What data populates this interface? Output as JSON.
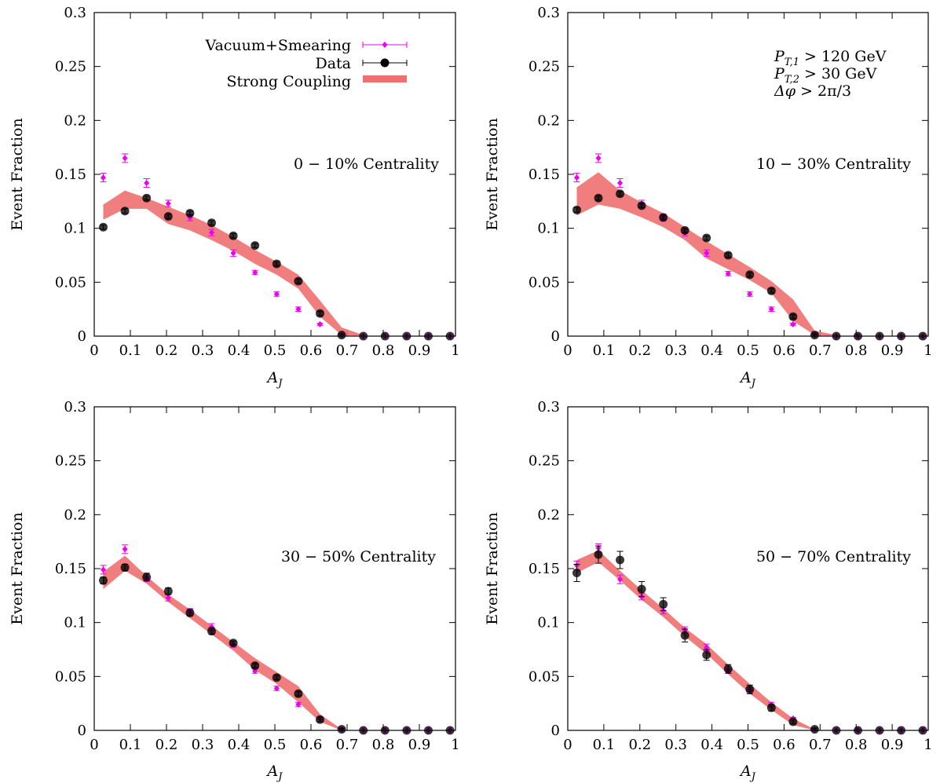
{
  "legend": {
    "entries": [
      {
        "label": "Vacuum+Smearing",
        "color": "#ee00ee"
      },
      {
        "label": "Data",
        "color": "#000000"
      },
      {
        "label": "Strong Coupling",
        "color": "#f07070"
      }
    ]
  },
  "cuts": {
    "line1": {
      "sym": "P",
      "sub": "T,1",
      "rest": " > 120 GeV"
    },
    "line2": {
      "sym": "P",
      "sub": "T,2",
      "rest": " > 30 GeV"
    },
    "line3": {
      "sym": "Δφ",
      "sub": "",
      "rest": " > 2π/3"
    }
  },
  "chart_data": [
    {
      "type": "scatter",
      "centrality": "0 − 10% Centrality",
      "xlabel": {
        "base": "A",
        "sub": "J"
      },
      "ylabel": "Event Fraction",
      "xlim": [
        0,
        1
      ],
      "ylim": [
        0,
        0.3
      ],
      "xticks": [
        "0",
        "0.1",
        "0.2",
        "0.3",
        "0.4",
        "0.5",
        "0.6",
        "0.7",
        "0.8",
        "0.9",
        "1"
      ],
      "yticks": [
        "0",
        "0.05",
        "0.1",
        "0.15",
        "0.2",
        "0.25",
        "0.3"
      ],
      "series": [
        {
          "name": "Vacuum+Smearing",
          "x": [
            0.025,
            0.085,
            0.145,
            0.205,
            0.265,
            0.325,
            0.385,
            0.445,
            0.505,
            0.565,
            0.625,
            0.685,
            0.745,
            0.805,
            0.865,
            0.925,
            0.985
          ],
          "y": [
            0.147,
            0.165,
            0.142,
            0.123,
            0.11,
            0.096,
            0.077,
            0.059,
            0.039,
            0.025,
            0.011,
            0.001,
            0,
            0,
            0,
            0,
            0
          ],
          "err": [
            0.004,
            0.004,
            0.004,
            0.003,
            0.003,
            0.003,
            0.003,
            0.002,
            0.002,
            0.002,
            0.001,
            0.001,
            0,
            0,
            0,
            0,
            0
          ]
        },
        {
          "name": "Data",
          "x": [
            0.025,
            0.085,
            0.145,
            0.205,
            0.265,
            0.325,
            0.385,
            0.445,
            0.505,
            0.565,
            0.625,
            0.685,
            0.745,
            0.805,
            0.865,
            0.925,
            0.985
          ],
          "y": [
            0.101,
            0.116,
            0.128,
            0.111,
            0.114,
            0.105,
            0.093,
            0.084,
            0.067,
            0.051,
            0.021,
            0.001,
            0,
            0,
            0,
            0,
            0
          ],
          "err": [
            0.002,
            0.002,
            0.002,
            0.002,
            0.002,
            0.002,
            0.002,
            0.002,
            0.002,
            0.002,
            0.002,
            0.001,
            0,
            0,
            0,
            0,
            0
          ]
        },
        {
          "name": "Strong Coupling",
          "x": [
            0.025,
            0.085,
            0.145,
            0.205,
            0.265,
            0.325,
            0.385,
            0.445,
            0.505,
            0.565,
            0.625,
            0.685,
            0.745
          ],
          "upper": [
            0.122,
            0.135,
            0.128,
            0.12,
            0.112,
            0.103,
            0.092,
            0.08,
            0.069,
            0.057,
            0.033,
            0.008,
            0.001
          ],
          "lower": [
            0.108,
            0.118,
            0.118,
            0.104,
            0.098,
            0.089,
            0.079,
            0.067,
            0.057,
            0.044,
            0.018,
            0.001,
            0
          ]
        }
      ]
    },
    {
      "type": "scatter",
      "centrality": "10 − 30% Centrality",
      "xlabel": {
        "base": "A",
        "sub": "J"
      },
      "ylabel": "Event Fraction",
      "xlim": [
        0,
        1
      ],
      "ylim": [
        0,
        0.3
      ],
      "xticks": [
        "0",
        "0.1",
        "0.2",
        "0.3",
        "0.4",
        "0.5",
        "0.6",
        "0.7",
        "0.8",
        "0.9",
        "1"
      ],
      "yticks": [
        "0",
        "0.05",
        "0.1",
        "0.15",
        "0.2",
        "0.25",
        "0.3"
      ],
      "series": [
        {
          "name": "Vacuum+Smearing",
          "x": [
            0.025,
            0.085,
            0.145,
            0.205,
            0.265,
            0.325,
            0.385,
            0.445,
            0.505,
            0.565,
            0.625,
            0.685,
            0.745,
            0.805,
            0.865,
            0.925,
            0.985
          ],
          "y": [
            0.147,
            0.165,
            0.142,
            0.123,
            0.11,
            0.096,
            0.077,
            0.058,
            0.039,
            0.025,
            0.011,
            0.001,
            0,
            0,
            0,
            0,
            0
          ],
          "err": [
            0.004,
            0.004,
            0.004,
            0.003,
            0.003,
            0.003,
            0.003,
            0.002,
            0.002,
            0.002,
            0.001,
            0.001,
            0,
            0,
            0,
            0,
            0
          ]
        },
        {
          "name": "Data",
          "x": [
            0.025,
            0.085,
            0.145,
            0.205,
            0.265,
            0.325,
            0.385,
            0.445,
            0.505,
            0.565,
            0.625,
            0.685,
            0.745,
            0.805,
            0.865,
            0.925,
            0.985
          ],
          "y": [
            0.117,
            0.128,
            0.132,
            0.121,
            0.11,
            0.098,
            0.091,
            0.075,
            0.057,
            0.042,
            0.018,
            0.001,
            0,
            0,
            0,
            0,
            0
          ],
          "err": [
            0.002,
            0.002,
            0.002,
            0.002,
            0.002,
            0.002,
            0.002,
            0.002,
            0.002,
            0.002,
            0.002,
            0.001,
            0,
            0,
            0,
            0,
            0
          ]
        },
        {
          "name": "Strong Coupling",
          "x": [
            0.025,
            0.085,
            0.145,
            0.205,
            0.265,
            0.325,
            0.385,
            0.445,
            0.505,
            0.565,
            0.625,
            0.685,
            0.745
          ],
          "upper": [
            0.138,
            0.152,
            0.135,
            0.124,
            0.114,
            0.101,
            0.088,
            0.076,
            0.064,
            0.051,
            0.034,
            0.005,
            0.001
          ],
          "lower": [
            0.112,
            0.122,
            0.118,
            0.11,
            0.101,
            0.089,
            0.072,
            0.062,
            0.052,
            0.04,
            0.014,
            0.001,
            0
          ]
        }
      ]
    },
    {
      "type": "scatter",
      "centrality": "30 − 50% Centrality",
      "xlabel": {
        "base": "A",
        "sub": "J"
      },
      "ylabel": "Event Fraction",
      "xlim": [
        0,
        1
      ],
      "ylim": [
        0,
        0.3
      ],
      "xticks": [
        "0",
        "0.1",
        "0.2",
        "0.3",
        "0.4",
        "0.5",
        "0.6",
        "0.7",
        "0.8",
        "0.9",
        "1"
      ],
      "yticks": [
        "0",
        "0.05",
        "0.1",
        "0.15",
        "0.2",
        "0.25",
        "0.3"
      ],
      "series": [
        {
          "name": "Vacuum+Smearing",
          "x": [
            0.025,
            0.085,
            0.145,
            0.205,
            0.265,
            0.325,
            0.385,
            0.445,
            0.505,
            0.565,
            0.625,
            0.685,
            0.745,
            0.805,
            0.865,
            0.925,
            0.985
          ],
          "y": [
            0.149,
            0.168,
            0.142,
            0.123,
            0.11,
            0.096,
            0.08,
            0.055,
            0.039,
            0.024,
            0.011,
            0.001,
            0,
            0,
            0,
            0,
            0
          ],
          "err": [
            0.004,
            0.004,
            0.004,
            0.003,
            0.003,
            0.003,
            0.003,
            0.002,
            0.002,
            0.002,
            0.001,
            0.001,
            0,
            0,
            0,
            0,
            0
          ]
        },
        {
          "name": "Data",
          "x": [
            0.025,
            0.085,
            0.145,
            0.205,
            0.265,
            0.325,
            0.385,
            0.445,
            0.505,
            0.565,
            0.625,
            0.685,
            0.745,
            0.805,
            0.865,
            0.925,
            0.985
          ],
          "y": [
            0.139,
            0.151,
            0.142,
            0.129,
            0.109,
            0.092,
            0.081,
            0.06,
            0.049,
            0.034,
            0.01,
            0.001,
            0,
            0,
            0,
            0,
            0
          ],
          "err": [
            0.003,
            0.003,
            0.003,
            0.003,
            0.003,
            0.003,
            0.002,
            0.002,
            0.002,
            0.002,
            0.002,
            0.001,
            0,
            0,
            0,
            0,
            0
          ]
        },
        {
          "name": "Strong Coupling",
          "x": [
            0.025,
            0.085,
            0.145,
            0.205,
            0.265,
            0.325,
            0.385,
            0.445,
            0.505,
            0.565,
            0.625,
            0.685
          ],
          "upper": [
            0.147,
            0.162,
            0.143,
            0.126,
            0.112,
            0.097,
            0.082,
            0.067,
            0.054,
            0.041,
            0.015,
            0.001
          ],
          "lower": [
            0.131,
            0.148,
            0.136,
            0.119,
            0.104,
            0.089,
            0.074,
            0.056,
            0.043,
            0.026,
            0.008,
            0
          ]
        }
      ]
    },
    {
      "type": "scatter",
      "centrality": "50 − 70% Centrality",
      "xlabel": {
        "base": "A",
        "sub": "J"
      },
      "ylabel": "Event Fraction",
      "xlim": [
        0,
        1
      ],
      "ylim": [
        0,
        0.3
      ],
      "xticks": [
        "0",
        "0.1",
        "0.2",
        "0.3",
        "0.4",
        "0.5",
        "0.6",
        "0.7",
        "0.8",
        "0.9",
        "1"
      ],
      "yticks": [
        "0",
        "0.05",
        "0.1",
        "0.15",
        "0.2",
        "0.25",
        "0.3"
      ],
      "series": [
        {
          "name": "Vacuum+Smearing",
          "x": [
            0.025,
            0.085,
            0.145,
            0.205,
            0.265,
            0.325,
            0.385,
            0.445,
            0.505,
            0.565,
            0.625,
            0.685,
            0.745,
            0.805,
            0.865,
            0.925,
            0.985
          ],
          "y": [
            0.153,
            0.169,
            0.14,
            0.124,
            0.111,
            0.093,
            0.077,
            0.055,
            0.038,
            0.024,
            0.011,
            0.001,
            0,
            0,
            0,
            0,
            0
          ],
          "err": [
            0.004,
            0.004,
            0.004,
            0.003,
            0.003,
            0.003,
            0.003,
            0.002,
            0.002,
            0.002,
            0.001,
            0.001,
            0,
            0,
            0,
            0,
            0
          ]
        },
        {
          "name": "Data",
          "x": [
            0.025,
            0.085,
            0.145,
            0.205,
            0.265,
            0.325,
            0.385,
            0.445,
            0.505,
            0.565,
            0.625,
            0.685,
            0.745,
            0.805,
            0.865,
            0.925,
            0.985
          ],
          "y": [
            0.146,
            0.163,
            0.158,
            0.131,
            0.117,
            0.088,
            0.07,
            0.057,
            0.038,
            0.021,
            0.008,
            0.001,
            0,
            0,
            0,
            0,
            0
          ],
          "err": [
            0.008,
            0.008,
            0.008,
            0.007,
            0.006,
            0.006,
            0.005,
            0.004,
            0.004,
            0.003,
            0.002,
            0.001,
            0,
            0,
            0,
            0,
            0
          ]
        },
        {
          "name": "Strong Coupling",
          "x": [
            0.025,
            0.085,
            0.145,
            0.205,
            0.265,
            0.325,
            0.385,
            0.445,
            0.505,
            0.565,
            0.625,
            0.685
          ],
          "upper": [
            0.158,
            0.167,
            0.148,
            0.13,
            0.113,
            0.095,
            0.08,
            0.061,
            0.043,
            0.026,
            0.011,
            0.001
          ],
          "lower": [
            0.146,
            0.156,
            0.139,
            0.121,
            0.105,
            0.087,
            0.071,
            0.052,
            0.034,
            0.019,
            0.005,
            0
          ]
        }
      ]
    }
  ]
}
